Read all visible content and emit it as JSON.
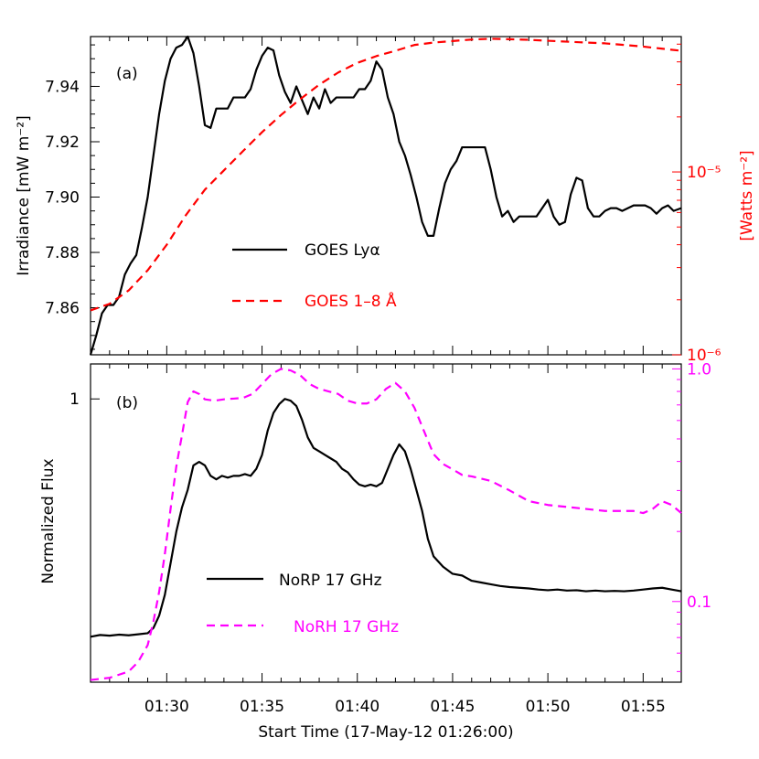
{
  "figure": {
    "xlabel": "Start Time (17-May-12 01:26:00)",
    "xticks": [
      "01:30",
      "01:35",
      "01:40",
      "01:45",
      "01:50",
      "01:55"
    ]
  },
  "chart_data": [
    {
      "type": "line",
      "panel_label": "(a)",
      "ylabel": "Irradiance [mW m⁻²]",
      "ylim": [
        7.843,
        7.958
      ],
      "yticks": [
        "7.86",
        "7.88",
        "7.90",
        "7.92",
        "7.94"
      ],
      "y2label": "[Watts m⁻²]",
      "y2_scale": "log",
      "y2lim": [
        1e-06,
        5.5e-05
      ],
      "y2ticks": [
        "10⁻⁶",
        "10⁻⁵"
      ],
      "y2_color": "#ff0000",
      "xlim_minutes": [
        0,
        31
      ],
      "legend": [
        "GOES Lyα",
        "GOES 1–8 Å"
      ],
      "series": [
        {
          "name": "GOES Lyα",
          "color": "#000000",
          "dash": "solid",
          "axis": "left",
          "x_minutes": [
            0,
            0.3,
            0.6,
            0.9,
            1.2,
            1.5,
            1.8,
            2.1,
            2.4,
            2.7,
            3.0,
            3.3,
            3.6,
            3.9,
            4.2,
            4.5,
            4.8,
            5.1,
            5.4,
            5.7,
            6.0,
            6.3,
            6.6,
            6.9,
            7.2,
            7.5,
            7.8,
            8.1,
            8.4,
            8.7,
            9.0,
            9.3,
            9.6,
            9.9,
            10.2,
            10.5,
            10.8,
            11.1,
            11.4,
            11.7,
            12.0,
            12.3,
            12.6,
            12.9,
            13.2,
            13.5,
            13.8,
            14.1,
            14.4,
            14.7,
            15.0,
            15.3,
            15.6,
            15.9,
            16.2,
            16.5,
            16.8,
            17.1,
            17.4,
            17.7,
            18.0,
            18.3,
            18.6,
            18.9,
            19.2,
            19.5,
            19.8,
            20.1,
            20.4,
            20.7,
            21.0,
            21.3,
            21.6,
            21.9,
            22.2,
            22.5,
            22.8,
            23.1,
            23.4,
            23.7,
            24.0,
            24.3,
            24.6,
            24.9,
            25.2,
            25.5,
            25.8,
            26.1,
            26.4,
            26.7,
            27.0,
            27.3,
            27.6,
            27.9,
            28.2,
            28.5,
            28.8,
            29.1,
            29.4,
            29.7,
            30.0,
            30.3,
            30.6,
            31.0
          ],
          "values": [
            7.843,
            7.85,
            7.858,
            7.861,
            7.861,
            7.864,
            7.872,
            7.876,
            7.879,
            7.889,
            7.9,
            7.915,
            7.93,
            7.942,
            7.95,
            7.954,
            7.955,
            7.958,
            7.952,
            7.94,
            7.926,
            7.925,
            7.932,
            7.932,
            7.932,
            7.936,
            7.936,
            7.936,
            7.939,
            7.946,
            7.951,
            7.954,
            7.953,
            7.944,
            7.938,
            7.934,
            7.94,
            7.935,
            7.93,
            7.936,
            7.932,
            7.939,
            7.934,
            7.936,
            7.936,
            7.936,
            7.936,
            7.939,
            7.939,
            7.942,
            7.949,
            7.946,
            7.936,
            7.93,
            7.92,
            7.915,
            7.908,
            7.9,
            7.891,
            7.886,
            7.886,
            7.896,
            7.905,
            7.91,
            7.913,
            7.918,
            7.918,
            7.918,
            7.918,
            7.918,
            7.91,
            7.9,
            7.893,
            7.895,
            7.891,
            7.893,
            7.893,
            7.893,
            7.893,
            7.896,
            7.899,
            7.893,
            7.89,
            7.891,
            7.901,
            7.907,
            7.906,
            7.896,
            7.893,
            7.893,
            7.895,
            7.896,
            7.896,
            7.895,
            7.896,
            7.897,
            7.897,
            7.897,
            7.896,
            7.894,
            7.896,
            7.897,
            7.895,
            7.896
          ]
        },
        {
          "name": "GOES 1–8 Å",
          "color": "#ff0000",
          "dash": "dashed",
          "axis": "right",
          "x_minutes": [
            0,
            1,
            2,
            3,
            4,
            5,
            6,
            7,
            8,
            9,
            10,
            11,
            12,
            13,
            14,
            15,
            16,
            17,
            18,
            19,
            20,
            21,
            22,
            23,
            24,
            25,
            26,
            27,
            28,
            29,
            30,
            31
          ],
          "values": [
            1.75e-06,
            1.9e-06,
            2.25e-06,
            2.9e-06,
            4e-06,
            5.8e-06,
            8e-06,
            1.02e-05,
            1.3e-05,
            1.65e-05,
            2.05e-05,
            2.5e-05,
            3e-05,
            3.5e-05,
            3.95e-05,
            4.3e-05,
            4.6e-05,
            4.95e-05,
            5.1e-05,
            5.2e-05,
            5.3e-05,
            5.35e-05,
            5.32e-05,
            5.28e-05,
            5.22e-05,
            5.16e-05,
            5.1e-05,
            5.05e-05,
            4.95e-05,
            4.85e-05,
            4.72e-05,
            4.6e-05
          ]
        }
      ]
    },
    {
      "type": "line",
      "panel_label": "(b)",
      "ylabel": "Normalized Flux",
      "ylim": [
        0.19,
        1.1
      ],
      "yticks": [
        "1"
      ],
      "y2_scale": "log",
      "y2lim": [
        0.045,
        1.05
      ],
      "y2ticks": [
        "0.1",
        "1.0"
      ],
      "y2_color": "#ff00ff",
      "xlim_minutes": [
        0,
        31
      ],
      "legend": [
        "NoRP 17 GHz",
        "NoRH 17 GHz"
      ],
      "series": [
        {
          "name": "NoRP 17 GHz",
          "color": "#000000",
          "dash": "solid",
          "axis": "left",
          "x_minutes": [
            0,
            0.5,
            1,
            1.5,
            2,
            2.5,
            3,
            3.3,
            3.6,
            3.9,
            4.2,
            4.5,
            4.8,
            5.1,
            5.4,
            5.7,
            6,
            6.3,
            6.6,
            6.9,
            7.2,
            7.5,
            7.8,
            8.1,
            8.4,
            8.7,
            9,
            9.3,
            9.6,
            9.9,
            10.2,
            10.5,
            10.8,
            11.1,
            11.4,
            11.7,
            12,
            12.3,
            12.6,
            12.9,
            13.2,
            13.5,
            13.8,
            14.1,
            14.4,
            14.7,
            15,
            15.3,
            15.6,
            15.9,
            16.2,
            16.5,
            16.8,
            17.1,
            17.4,
            17.7,
            18,
            18.5,
            19,
            19.5,
            20,
            20.5,
            21,
            21.5,
            22,
            22.5,
            23,
            23.5,
            24,
            24.5,
            25,
            25.5,
            26,
            26.5,
            27,
            27.5,
            28,
            28.5,
            29,
            29.5,
            30,
            30.5,
            31
          ],
          "values": [
            0.32,
            0.325,
            0.323,
            0.326,
            0.324,
            0.327,
            0.33,
            0.345,
            0.38,
            0.44,
            0.53,
            0.62,
            0.69,
            0.74,
            0.81,
            0.82,
            0.81,
            0.78,
            0.77,
            0.78,
            0.775,
            0.78,
            0.78,
            0.785,
            0.78,
            0.8,
            0.84,
            0.91,
            0.96,
            0.985,
            1.0,
            0.995,
            0.98,
            0.94,
            0.89,
            0.86,
            0.85,
            0.84,
            0.83,
            0.82,
            0.8,
            0.79,
            0.77,
            0.755,
            0.75,
            0.755,
            0.75,
            0.76,
            0.8,
            0.84,
            0.87,
            0.85,
            0.8,
            0.74,
            0.68,
            0.6,
            0.55,
            0.52,
            0.5,
            0.495,
            0.48,
            0.475,
            0.47,
            0.465,
            0.462,
            0.46,
            0.458,
            0.455,
            0.453,
            0.455,
            0.452,
            0.453,
            0.45,
            0.452,
            0.45,
            0.451,
            0.45,
            0.452,
            0.455,
            0.458,
            0.46,
            0.455,
            0.45
          ]
        },
        {
          "name": "NoRH 17 GHz",
          "color": "#ff00ff",
          "dash": "dashed",
          "axis": "right",
          "x_minutes": [
            0,
            1,
            2,
            2.5,
            3,
            3.3,
            3.6,
            3.9,
            4.2,
            4.5,
            4.8,
            5.1,
            5.4,
            5.7,
            6,
            6.5,
            7,
            7.5,
            8,
            8.5,
            9,
            9.5,
            10,
            10.5,
            11,
            11.5,
            12,
            12.5,
            13,
            13.5,
            14,
            14.5,
            15,
            15.5,
            16,
            16.5,
            17,
            17.5,
            18,
            18.5,
            19,
            19.5,
            20,
            21,
            22,
            23,
            24,
            25,
            26,
            27,
            28,
            28.5,
            29,
            29.5,
            30,
            30.5,
            31
          ],
          "values": [
            0.046,
            0.047,
            0.05,
            0.055,
            0.065,
            0.082,
            0.11,
            0.16,
            0.25,
            0.38,
            0.52,
            0.72,
            0.8,
            0.78,
            0.74,
            0.73,
            0.74,
            0.745,
            0.75,
            0.78,
            0.86,
            0.95,
            1.0,
            0.985,
            0.94,
            0.86,
            0.82,
            0.8,
            0.78,
            0.73,
            0.71,
            0.71,
            0.74,
            0.82,
            0.87,
            0.8,
            0.68,
            0.54,
            0.43,
            0.39,
            0.37,
            0.35,
            0.345,
            0.33,
            0.3,
            0.27,
            0.26,
            0.255,
            0.25,
            0.245,
            0.245,
            0.245,
            0.24,
            0.25,
            0.27,
            0.26,
            0.24
          ]
        }
      ]
    }
  ]
}
